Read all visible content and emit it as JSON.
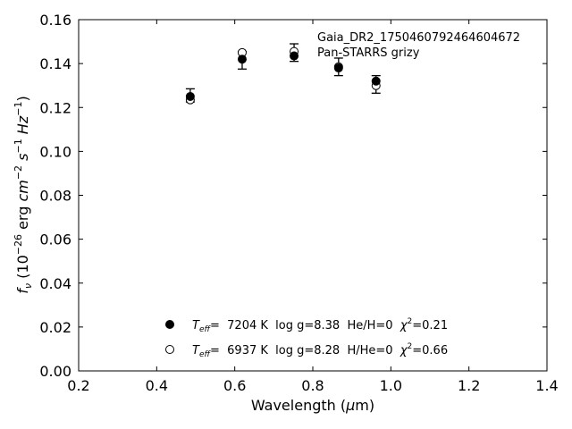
{
  "chart_data": {
    "type": "scatter",
    "title": "",
    "xlabel": "Wavelength (μm)",
    "ylabel": "f_ν (10^-26 erg cm^-2 s^-1 Hz^-1)",
    "xlim": [
      0.2,
      1.4
    ],
    "ylim": [
      0.0,
      0.16
    ],
    "xticks": [
      0.2,
      0.4,
      0.6,
      0.8,
      1.0,
      1.2,
      1.4
    ],
    "yticks": [
      0.0,
      0.02,
      0.04,
      0.06,
      0.08,
      0.1,
      0.12,
      0.14,
      0.16
    ],
    "xtick_labels": [
      "0.2",
      "0.4",
      "0.6",
      "0.8",
      "1.0",
      "1.2",
      "1.4"
    ],
    "ytick_labels": [
      "0.00",
      "0.02",
      "0.04",
      "0.06",
      "0.08",
      "0.10",
      "0.12",
      "0.14",
      "0.16"
    ],
    "grid": false,
    "legend_position": "lower-center",
    "annotations": [
      "Gaia_DR2_1750460792464604672",
      "Pan-STARRS grizy"
    ],
    "observed": {
      "x": [
        0.486,
        0.619,
        0.752,
        0.866,
        0.962
      ],
      "y": [
        0.1255,
        0.1415,
        0.145,
        0.1385,
        0.1305
      ],
      "yerr": [
        0.003,
        0.004,
        0.004,
        0.004,
        0.004
      ]
    },
    "series": [
      {
        "name": "T_eff=  7204 K  log g=8.38  He/H=0  χ²=0.21",
        "marker": "filled-circle",
        "x": [
          0.486,
          0.619,
          0.752,
          0.866,
          0.962
        ],
        "y": [
          0.125,
          0.142,
          0.1435,
          0.138,
          0.132
        ]
      },
      {
        "name": "T_eff=  6937 K  log g=8.28  H/He=0  χ²=0.66",
        "marker": "open-circle",
        "x": [
          0.486,
          0.619,
          0.752,
          0.866,
          0.962
        ],
        "y": [
          0.1235,
          0.145,
          0.1455,
          0.1385,
          0.13
        ]
      }
    ],
    "legend": {
      "entries": [
        {
          "teff_label": "T",
          "teff_sub": "eff",
          "text": "=  7204 K  log g=8.38  He/H=0  ",
          "chi_label": "χ",
          "chi_sup": "2",
          "chi_value": "=0.21"
        },
        {
          "teff_label": "T",
          "teff_sub": "eff",
          "text": "=  6937 K  log g=8.28  H/He=0  ",
          "chi_label": "χ",
          "chi_sup": "2",
          "chi_value": "=0.66"
        }
      ]
    },
    "ylabel_parts": {
      "f": "f",
      "nu": "ν",
      "open": " (10",
      "exp1": "−26",
      "mid1": " erg ",
      "cm": "cm",
      "exp2": "−2",
      "sp": " ",
      "s": "s",
      "exp3": "−1",
      "sp2": " ",
      "hz": "Hz",
      "exp4": "−1",
      "close": ")"
    },
    "xlabel_parts": {
      "pre": "Wavelength (",
      "mu": "μ",
      "post": "m)"
    }
  }
}
